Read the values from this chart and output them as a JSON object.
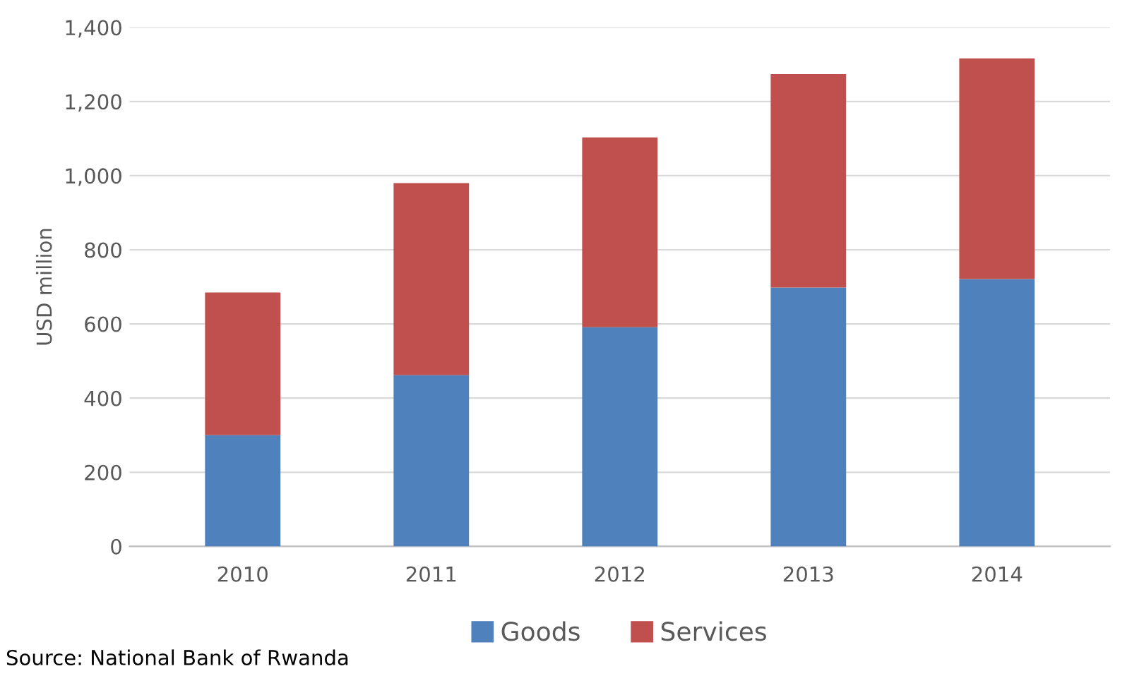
{
  "chart_data": {
    "type": "bar",
    "stacked": true,
    "ylabel": "USD million",
    "categories": [
      "2010",
      "2011",
      "2012",
      "2013",
      "2014"
    ],
    "series": [
      {
        "name": "Goods",
        "color": "#4f81bd",
        "values": [
          300,
          462,
          591,
          698,
          721
        ]
      },
      {
        "name": "Services",
        "color": "#c0504d",
        "values": [
          385,
          518,
          512,
          576,
          595
        ]
      }
    ],
    "ylim": [
      0,
      1400
    ],
    "yticks": [
      {
        "value": 0,
        "label": "0"
      },
      {
        "value": 200,
        "label": "200"
      },
      {
        "value": 400,
        "label": "400"
      },
      {
        "value": 600,
        "label": "600"
      },
      {
        "value": 800,
        "label": "800"
      },
      {
        "value": 1000,
        "label": "1,000"
      },
      {
        "value": 1200,
        "label": "1,200"
      },
      {
        "value": 1400,
        "label": "1,400"
      }
    ],
    "grid": "y",
    "legend": "bottom",
    "annotations": [
      "Source: National Bank of Rwanda"
    ]
  }
}
